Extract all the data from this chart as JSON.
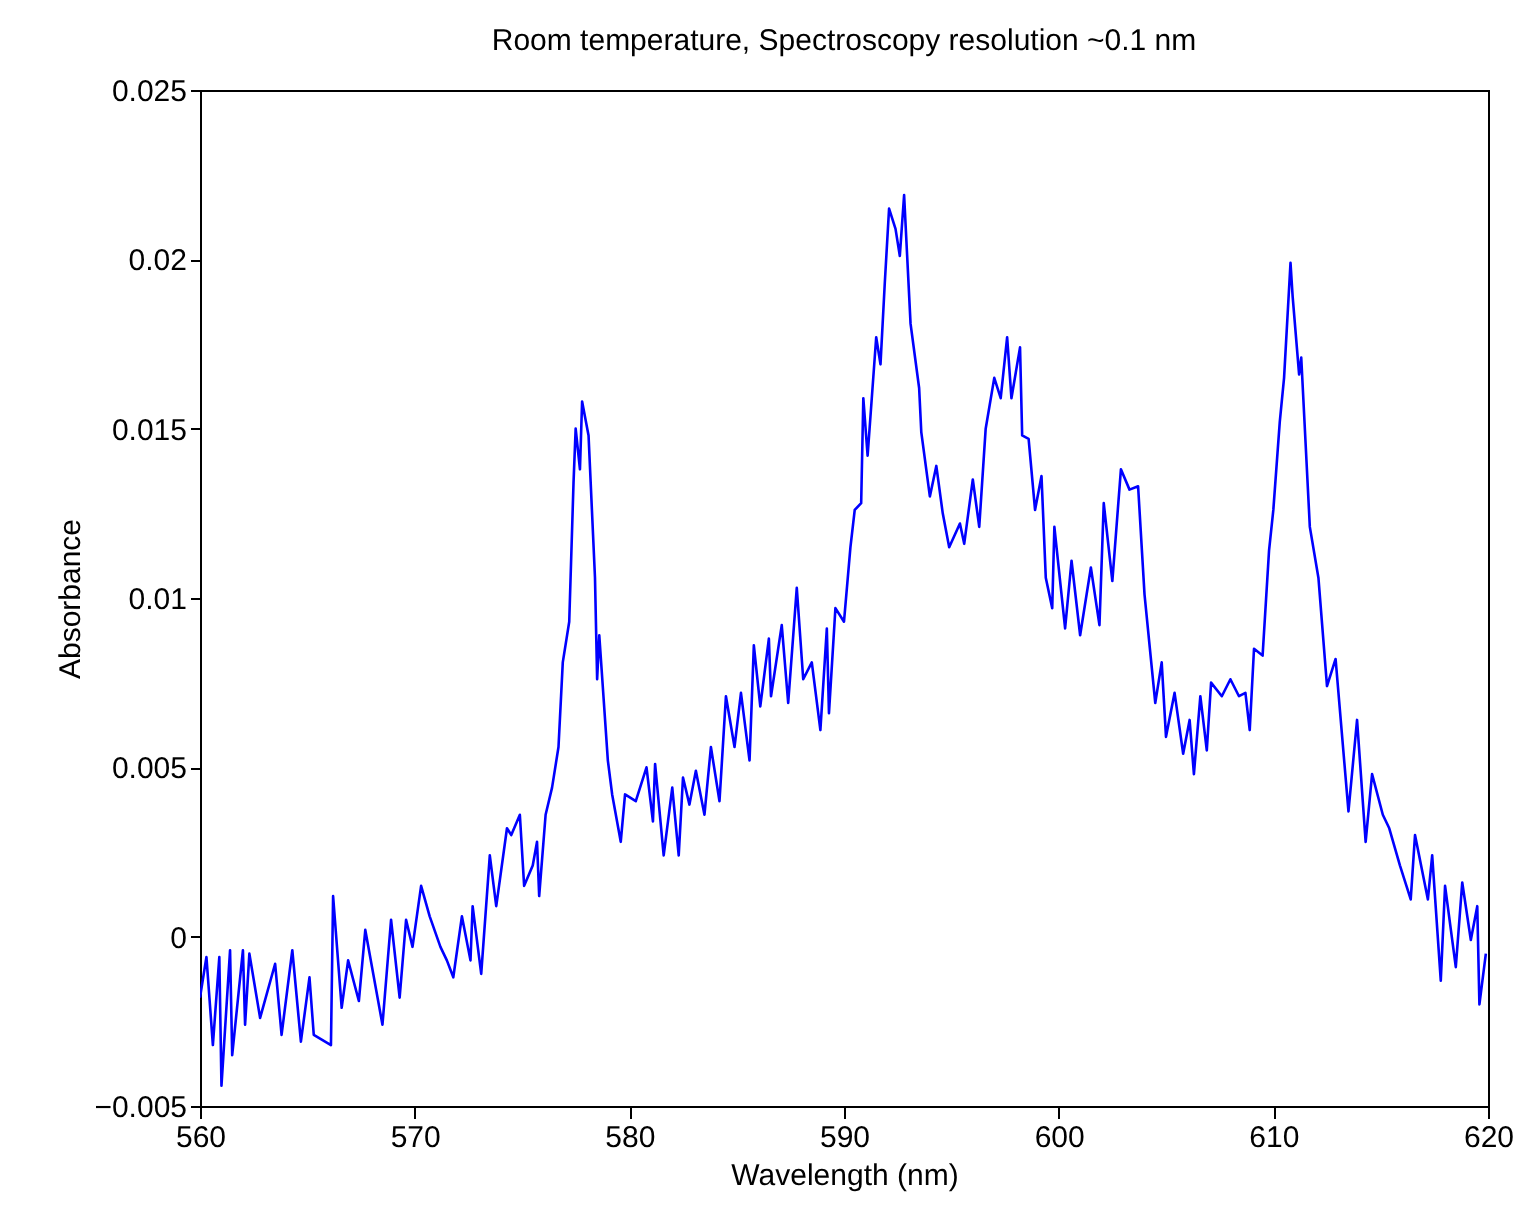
{
  "chart_data": {
    "type": "line",
    "title": "Room temperature, Spectroscopy resolution ~0.1 nm",
    "xlabel": "Wavelength (nm)",
    "ylabel": "Absorbance",
    "xlim": [
      560,
      620
    ],
    "xticks": [
      560,
      570,
      580,
      590,
      600,
      610,
      620
    ],
    "ylim": [
      -0.005,
      0.025
    ],
    "yticks": [
      -0.005,
      0,
      0.005,
      0.01,
      0.015,
      0.02,
      0.025
    ],
    "grid": false,
    "marker": "none",
    "line_style": "solid",
    "series": [
      {
        "color": "#0000ff",
        "x": [
          560.0,
          560.3,
          560.6,
          560.9,
          561.0,
          561.4,
          561.5,
          562.0,
          562.1,
          562.3,
          562.8,
          563.5,
          563.8,
          564.3,
          564.7,
          565.1,
          565.3,
          566.1,
          566.2,
          566.6,
          566.9,
          567.4,
          567.7,
          568.5,
          568.9,
          569.3,
          569.6,
          569.9,
          570.3,
          570.7,
          571.2,
          571.5,
          571.8,
          572.2,
          572.6,
          572.7,
          573.1,
          573.5,
          573.8,
          574.3,
          574.5,
          574.9,
          575.1,
          575.5,
          575.7,
          575.8,
          576.1,
          576.4,
          576.7,
          576.9,
          577.2,
          577.4,
          577.5,
          577.7,
          577.8,
          578.1,
          578.4,
          578.5,
          578.6,
          579.0,
          579.2,
          579.6,
          579.8,
          580.3,
          580.8,
          581.1,
          581.2,
          581.6,
          582.0,
          582.3,
          582.5,
          582.8,
          583.1,
          583.5,
          583.8,
          584.2,
          584.5,
          584.9,
          585.2,
          585.6,
          585.8,
          586.1,
          586.5,
          586.6,
          587.1,
          587.4,
          587.8,
          588.1,
          588.5,
          588.9,
          589.2,
          589.3,
          589.6,
          590.0,
          590.3,
          590.5,
          590.8,
          590.9,
          591.1,
          591.5,
          591.7,
          591.9,
          592.1,
          592.4,
          592.6,
          592.8,
          593.1,
          593.5,
          593.6,
          594.0,
          594.3,
          594.6,
          594.9,
          595.4,
          595.6,
          596.0,
          596.3,
          596.6,
          597.0,
          597.3,
          597.6,
          597.8,
          598.2,
          598.3,
          598.6,
          598.9,
          599.2,
          599.4,
          599.7,
          599.8,
          600.3,
          600.6,
          601.0,
          601.5,
          601.9,
          602.1,
          602.5,
          602.9,
          603.3,
          603.7,
          604.0,
          604.5,
          604.8,
          605.0,
          605.4,
          605.8,
          606.1,
          606.3,
          606.6,
          606.9,
          607.1,
          607.6,
          608.0,
          608.4,
          608.7,
          608.9,
          609.1,
          609.5,
          609.8,
          610.0,
          610.3,
          610.5,
          610.8,
          610.9,
          611.2,
          611.3,
          611.7,
          612.1,
          612.5,
          612.9,
          613.5,
          613.9,
          614.3,
          614.6,
          615.1,
          615.4,
          615.9,
          616.4,
          616.6,
          617.2,
          617.4,
          617.8,
          618.0,
          618.5,
          618.8,
          619.2,
          619.5,
          619.6,
          619.9
        ],
        "values": [
          -0.0018,
          -0.0006,
          -0.0032,
          -0.0006,
          -0.0044,
          -0.0004,
          -0.0035,
          -0.0004,
          -0.0026,
          -0.0005,
          -0.0024,
          -0.0008,
          -0.0029,
          -0.0004,
          -0.0031,
          -0.0012,
          -0.0029,
          -0.0032,
          0.0012,
          -0.0021,
          -0.0007,
          -0.0019,
          0.0002,
          -0.0026,
          0.0005,
          -0.0018,
          0.0005,
          -0.0003,
          0.0015,
          0.0006,
          -0.0003,
          -0.0007,
          -0.0012,
          0.0006,
          -0.0007,
          0.0009,
          -0.0011,
          0.0024,
          0.0009,
          0.0032,
          0.003,
          0.0036,
          0.0015,
          0.0021,
          0.0028,
          0.0012,
          0.0036,
          0.0044,
          0.0056,
          0.0081,
          0.0093,
          0.0134,
          0.015,
          0.0138,
          0.0158,
          0.0148,
          0.0106,
          0.0076,
          0.0089,
          0.0052,
          0.0042,
          0.0028,
          0.0042,
          0.004,
          0.005,
          0.0034,
          0.0051,
          0.0024,
          0.0044,
          0.0024,
          0.0047,
          0.0039,
          0.0049,
          0.0036,
          0.0056,
          0.004,
          0.0071,
          0.0056,
          0.0072,
          0.0052,
          0.0086,
          0.0068,
          0.0088,
          0.0071,
          0.0092,
          0.0069,
          0.0103,
          0.0076,
          0.0081,
          0.0061,
          0.0091,
          0.0066,
          0.0097,
          0.0093,
          0.0115,
          0.0126,
          0.0128,
          0.0159,
          0.0142,
          0.0177,
          0.0169,
          0.0193,
          0.0215,
          0.0209,
          0.0201,
          0.0219,
          0.0181,
          0.0162,
          0.0149,
          0.013,
          0.0139,
          0.0125,
          0.0115,
          0.0122,
          0.0116,
          0.0135,
          0.0121,
          0.015,
          0.0165,
          0.0159,
          0.0177,
          0.0159,
          0.0174,
          0.0148,
          0.0147,
          0.0126,
          0.0136,
          0.0106,
          0.0097,
          0.0121,
          0.0091,
          0.0111,
          0.0089,
          0.0109,
          0.0092,
          0.0128,
          0.0105,
          0.0138,
          0.0132,
          0.0133,
          0.0101,
          0.0069,
          0.0081,
          0.0059,
          0.0072,
          0.0054,
          0.0064,
          0.0048,
          0.0071,
          0.0055,
          0.0075,
          0.0071,
          0.0076,
          0.0071,
          0.0072,
          0.0061,
          0.0085,
          0.0083,
          0.0114,
          0.0126,
          0.0152,
          0.0165,
          0.0199,
          0.0189,
          0.0166,
          0.0171,
          0.0121,
          0.0106,
          0.0074,
          0.0082,
          0.0037,
          0.0064,
          0.0028,
          0.0048,
          0.0036,
          0.0032,
          0.0021,
          0.0011,
          0.003,
          0.0011,
          0.0024,
          -0.0013,
          0.0015,
          -0.0009,
          0.0016,
          -0.0001,
          0.0009,
          -0.002,
          -0.0005
        ]
      }
    ]
  }
}
